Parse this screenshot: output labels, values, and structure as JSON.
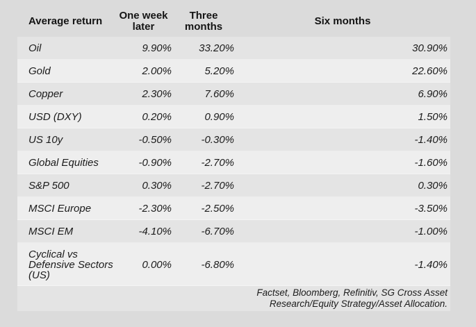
{
  "display": {
    "headers": [
      "Average return",
      "One week\nlater",
      "Three\nmonths",
      "Six months"
    ],
    "cyclical_label": "Cyclical vs\nDefensive Sectors\n(US)",
    "source": "Factset, Bloomberg, Refinitiv, SG Cross Asset\nResearch/Equity Strategy/Asset Allocation."
  },
  "chart_data": {
    "type": "table",
    "title": "Average return",
    "columns": [
      "Average return",
      "One week later",
      "Three months",
      "Six months"
    ],
    "rows": [
      [
        "Oil",
        "9.90%",
        "33.20%",
        "30.90%"
      ],
      [
        "Gold",
        "2.00%",
        "5.20%",
        "22.60%"
      ],
      [
        "Copper",
        "2.30%",
        "7.60%",
        "6.90%"
      ],
      [
        "USD (DXY)",
        "0.20%",
        "0.90%",
        "1.50%"
      ],
      [
        "US 10y",
        "-0.50%",
        "-0.30%",
        "-1.40%"
      ],
      [
        "Global Equities",
        "-0.90%",
        "-2.70%",
        "-1.60%"
      ],
      [
        "S&P 500",
        "0.30%",
        "-2.70%",
        "0.30%"
      ],
      [
        "MSCI Europe",
        "-2.30%",
        "-2.50%",
        "-3.50%"
      ],
      [
        "MSCI EM",
        "-4.10%",
        "-6.70%",
        "-1.00%"
      ],
      [
        "Cyclical vs Defensive Sectors (US)",
        "0.00%",
        "-6.80%",
        "-1.40%"
      ]
    ],
    "source": "Factset, Bloomberg, Refinitiv, SG Cross Asset Research/Equity Strategy/Asset Allocation.",
    "layout": {
      "row_striping": true,
      "value_alignment": "right",
      "source_position": "bottom-right"
    }
  },
  "colors": {
    "page_bg": "#dbdbdb",
    "row_odd": "#e4e4e4",
    "row_even": "#eeeeee",
    "text": "#1b1b1b"
  }
}
